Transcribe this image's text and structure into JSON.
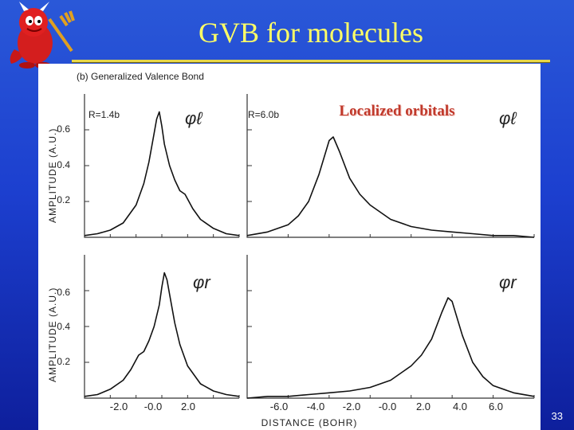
{
  "slide": {
    "title": "GVB for molecules",
    "page_number": "33",
    "mascot": "devil-mascot-with-trident"
  },
  "figure": {
    "heading": "(b)  Generalized   Valence  Bond",
    "overlay_label": "Localized orbitals",
    "shared_y_label": "AMPLITUDE  (A.U.)",
    "x_axis_label": "DISTANCE  (BOHR)",
    "left_x_ticks": [
      "-2.0",
      "-0.0",
      "2.0"
    ],
    "right_x_ticks": [
      "-6.0",
      "-4.0",
      "-2.0",
      "-0.0",
      "2.0",
      "4.0",
      "6.0"
    ],
    "y_ticks": [
      "0.6",
      "0.4",
      "0.2"
    ]
  },
  "chart_data": [
    {
      "type": "line",
      "panel": "top-left",
      "annotation": "R=1.4b",
      "orbital_label": "φℓ",
      "ylabel": "AMPLITUDE  (A.U.)",
      "xlim": [
        -3.0,
        3.0
      ],
      "ylim": [
        0.0,
        0.8
      ],
      "x": [
        -3.0,
        -2.5,
        -2.0,
        -1.5,
        -1.0,
        -0.7,
        -0.5,
        -0.3,
        -0.2,
        -0.1,
        0.0,
        0.1,
        0.3,
        0.5,
        0.7,
        0.9,
        1.2,
        1.5,
        2.0,
        2.5,
        3.0
      ],
      "y": [
        0.01,
        0.02,
        0.04,
        0.08,
        0.18,
        0.3,
        0.42,
        0.58,
        0.66,
        0.7,
        0.62,
        0.52,
        0.4,
        0.32,
        0.26,
        0.24,
        0.16,
        0.1,
        0.05,
        0.02,
        0.01
      ]
    },
    {
      "type": "line",
      "panel": "top-right",
      "annotation": "R=6.0b",
      "orbital_label": "φℓ",
      "xlim": [
        -7.0,
        7.0
      ],
      "ylim": [
        0.0,
        0.8
      ],
      "x": [
        -7.0,
        -6.0,
        -5.0,
        -4.5,
        -4.0,
        -3.5,
        -3.0,
        -2.8,
        -2.5,
        -2.0,
        -1.5,
        -1.0,
        0.0,
        1.0,
        2.0,
        3.0,
        4.0,
        5.0,
        6.0,
        7.0
      ],
      "y": [
        0.01,
        0.03,
        0.07,
        0.12,
        0.2,
        0.35,
        0.54,
        0.56,
        0.48,
        0.33,
        0.24,
        0.18,
        0.1,
        0.06,
        0.04,
        0.03,
        0.02,
        0.01,
        0.01,
        0.0
      ]
    },
    {
      "type": "line",
      "panel": "bottom-left",
      "orbital_label": "φr",
      "ylabel": "AMPLITUDE  (A.U.)",
      "xlabel": "",
      "xlim": [
        -3.0,
        3.0
      ],
      "ylim": [
        0.0,
        0.8
      ],
      "x": [
        -3.0,
        -2.5,
        -2.0,
        -1.5,
        -1.2,
        -0.9,
        -0.7,
        -0.5,
        -0.3,
        -0.1,
        0.0,
        0.1,
        0.2,
        0.3,
        0.5,
        0.7,
        1.0,
        1.5,
        2.0,
        2.5,
        3.0
      ],
      "y": [
        0.01,
        0.02,
        0.05,
        0.1,
        0.16,
        0.24,
        0.26,
        0.32,
        0.4,
        0.52,
        0.62,
        0.7,
        0.66,
        0.58,
        0.42,
        0.3,
        0.18,
        0.08,
        0.04,
        0.02,
        0.01
      ]
    },
    {
      "type": "line",
      "panel": "bottom-right",
      "orbital_label": "φr",
      "xlabel": "DISTANCE  (BOHR)",
      "xlim": [
        -7.0,
        7.0
      ],
      "ylim": [
        0.0,
        0.8
      ],
      "x": [
        -7.0,
        -6.0,
        -5.0,
        -4.0,
        -3.0,
        -2.0,
        -1.0,
        0.0,
        1.0,
        1.5,
        2.0,
        2.5,
        2.8,
        3.0,
        3.5,
        4.0,
        4.5,
        5.0,
        6.0,
        7.0
      ],
      "y": [
        0.0,
        0.01,
        0.01,
        0.02,
        0.03,
        0.04,
        0.06,
        0.1,
        0.18,
        0.24,
        0.33,
        0.48,
        0.56,
        0.54,
        0.35,
        0.2,
        0.12,
        0.07,
        0.03,
        0.01
      ]
    }
  ]
}
